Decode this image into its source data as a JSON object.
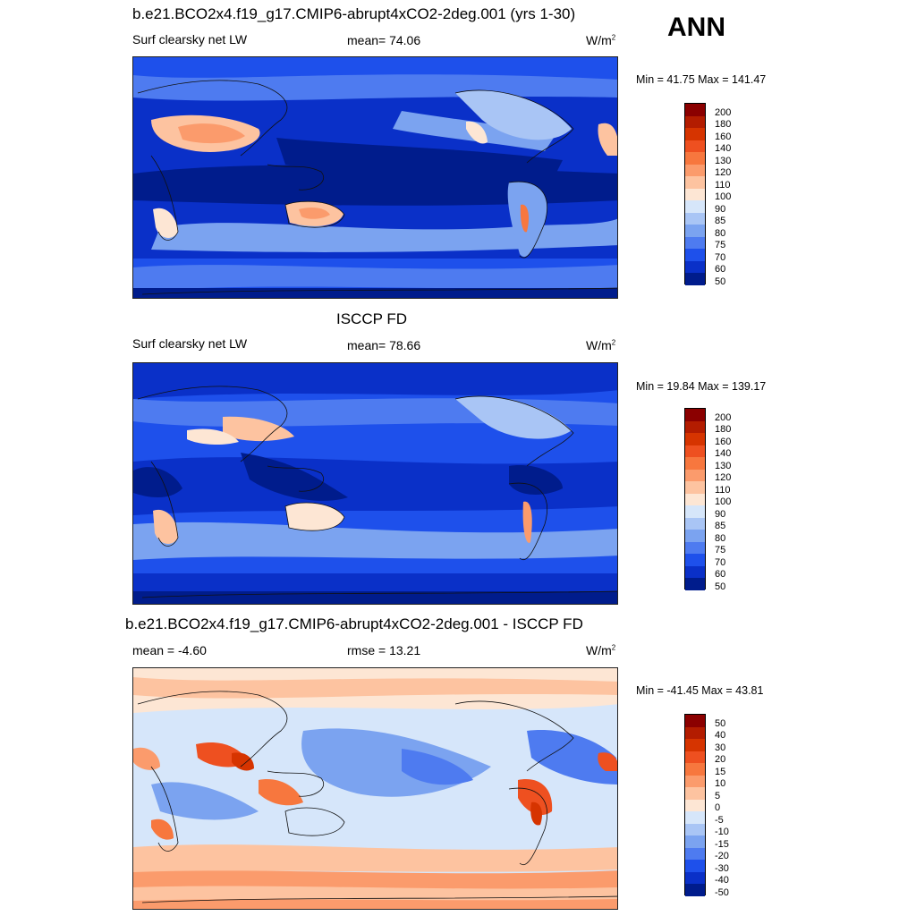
{
  "season": "ANN",
  "panels": [
    {
      "title": "b.e21.BCO2x4.f19_g17.CMIP6-abrupt4xCO2-2deg.001 (yrs 1-30)",
      "variable": "Surf clearsky net LW",
      "center_label": "mean=  74.06",
      "units": "W/m",
      "units_exp": "2",
      "minmax": "Min =  41.75 Max = 141.47",
      "colorbar": [
        "200",
        "180",
        "160",
        "140",
        "130",
        "120",
        "110",
        "100",
        "90",
        "85",
        "80",
        "75",
        "70",
        "60",
        "50"
      ]
    },
    {
      "title": "ISCCP FD",
      "variable": "Surf clearsky net LW",
      "center_label": "mean=  78.66",
      "units": "W/m",
      "units_exp": "2",
      "minmax": "Min =  19.84 Max = 139.17",
      "colorbar": [
        "200",
        "180",
        "160",
        "140",
        "130",
        "120",
        "110",
        "100",
        "90",
        "85",
        "80",
        "75",
        "70",
        "60",
        "50"
      ]
    },
    {
      "title": "b.e21.BCO2x4.f19_g17.CMIP6-abrupt4xCO2-2deg.001 - ISCCP FD",
      "variable": "mean =  -4.60",
      "center_label": "rmse =  13.21",
      "units": "W/m",
      "units_exp": "2",
      "minmax": "Min = -41.45 Max =  43.81",
      "colorbar": [
        "50",
        "40",
        "30",
        "20",
        "15",
        "10",
        "5",
        "0",
        "-5",
        "-10",
        "-15",
        "-20",
        "-30",
        "-40",
        "-50"
      ]
    }
  ],
  "colors": [
    "#8b0000",
    "#b31c00",
    "#d63400",
    "#ee5020",
    "#f7773e",
    "#fb9b6c",
    "#fdc3a0",
    "#fde6d4",
    "#d6e6fa",
    "#a9c5f5",
    "#7ba3f0",
    "#4e7bf0",
    "#1e50eb",
    "#0a30c8",
    "#001c8c"
  ]
}
